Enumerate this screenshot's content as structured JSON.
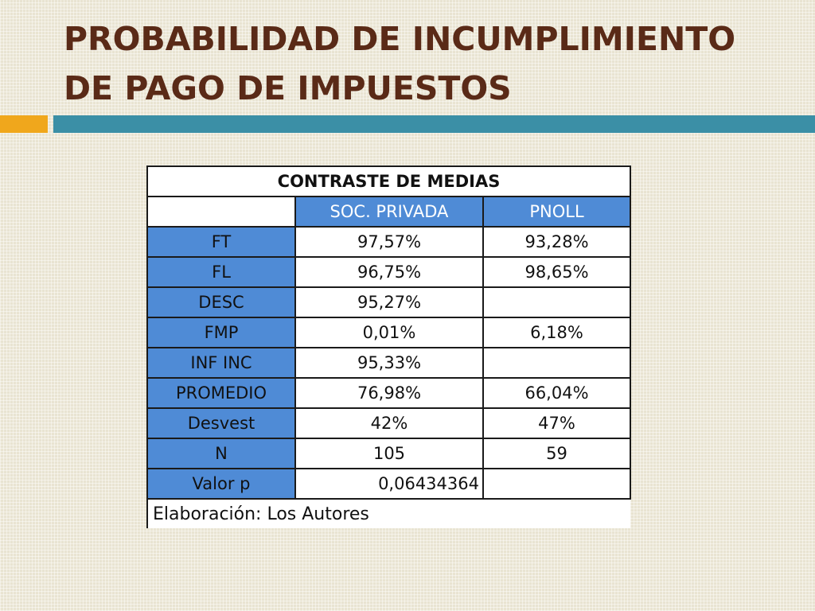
{
  "slide": {
    "title": "PROBABILIDAD DE INCUMPLIMIENTO DE PAGO DE IMPUESTOS"
  },
  "table": {
    "caption": "CONTRASTE DE MEDIAS",
    "columns": [
      "SOC. PRIVADA",
      "PNOLL"
    ],
    "rows": [
      {
        "label": "FT",
        "soc_privada": "97,57%",
        "pnoll": "93,28%"
      },
      {
        "label": "FL",
        "soc_privada": "96,75%",
        "pnoll": "98,65%"
      },
      {
        "label": "DESC",
        "soc_privada": "95,27%",
        "pnoll": ""
      },
      {
        "label": "FMP",
        "soc_privada": "0,01%",
        "pnoll": "6,18%"
      },
      {
        "label": "INF INC",
        "soc_privada": "95,33%",
        "pnoll": ""
      },
      {
        "label": "PROMEDIO",
        "soc_privada": "76,98%",
        "pnoll": "66,04%"
      },
      {
        "label": "Desvest",
        "soc_privada": "42%",
        "pnoll": "47%"
      },
      {
        "label": "N",
        "soc_privada": "105",
        "pnoll": "59"
      },
      {
        "label": "Valor p",
        "soc_privada": "0,06434364",
        "pnoll": ""
      }
    ],
    "source_note": "Elaboración: Los Autores"
  },
  "colors": {
    "title": "#5a2a17",
    "accent_bar": "#f0a71c",
    "main_bar": "#3b8fa6",
    "table_blue": "#4f8bd6"
  }
}
